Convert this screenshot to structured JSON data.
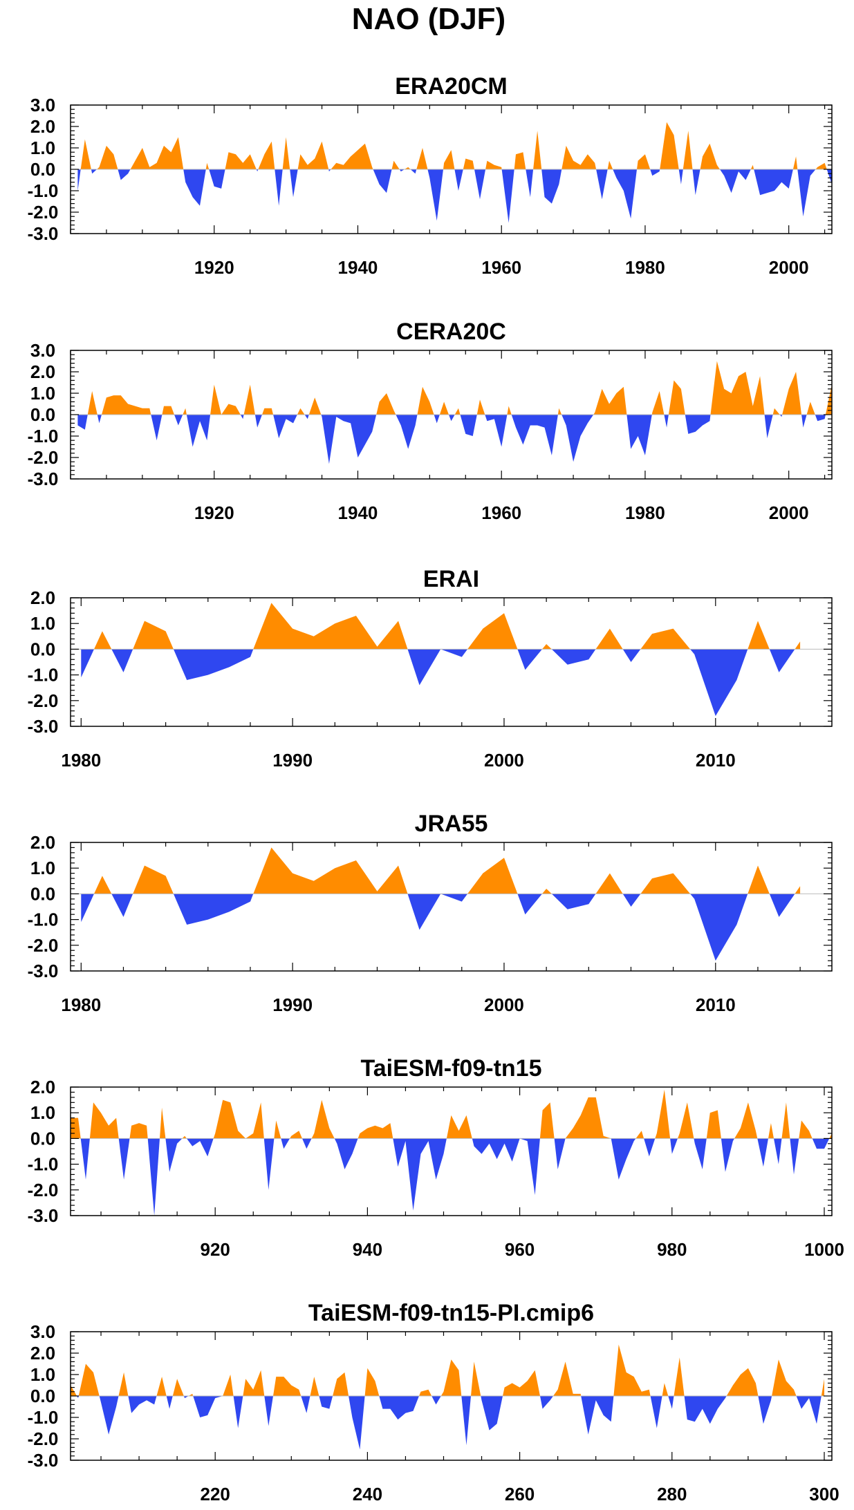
{
  "figure": {
    "title": "NAO (DJF)"
  },
  "colors": {
    "positive": "#FF8C00",
    "negative": "#2F47F0",
    "axis": "#000000"
  },
  "chart_data": [
    {
      "type": "area",
      "title": "ERA20CM",
      "xlabel": "",
      "ylabel": "",
      "xlim": [
        1900,
        2006
      ],
      "ylim": [
        -3,
        3
      ],
      "yticks": [
        3,
        2,
        1,
        0,
        -1,
        -2,
        -3
      ],
      "ytick_labels": [
        "3.0",
        "2.0",
        "1.0",
        "0.0",
        "-1.0",
        "-2.0",
        "-3.0"
      ],
      "xticks": [
        1920,
        1940,
        1960,
        1980,
        2000
      ],
      "xtick_labels": [
        "1920",
        "1940",
        "1960",
        "1980",
        "2000"
      ],
      "x_start": 1901,
      "values": [
        -1.0,
        1.4,
        -0.2,
        0.1,
        1.1,
        0.7,
        -0.5,
        -0.2,
        0.4,
        1.0,
        0.1,
        0.3,
        1.1,
        0.8,
        1.5,
        -0.6,
        -1.3,
        -1.7,
        0.3,
        -0.8,
        -0.9,
        0.8,
        0.7,
        0.3,
        0.7,
        -0.1,
        0.7,
        1.3,
        -1.7,
        1.5,
        -1.3,
        0.7,
        0.2,
        0.5,
        1.3,
        -0.1,
        0.3,
        0.2,
        0.6,
        0.9,
        1.2,
        0.1,
        -0.7,
        -1.1,
        0.4,
        -0.1,
        0.1,
        -0.2,
        1.0,
        -0.4,
        -2.4,
        0.3,
        0.9,
        -1.0,
        0.5,
        0.4,
        -1.4,
        0.4,
        0.2,
        0.1,
        -2.5,
        0.7,
        0.8,
        -1.3,
        1.8,
        -1.3,
        -1.6,
        -0.7,
        1.1,
        0.4,
        0.2,
        0.7,
        0.3,
        -1.4,
        0.4,
        -0.4,
        -1.0,
        -2.3,
        0.4,
        0.7,
        -0.3,
        -0.1,
        2.2,
        1.6,
        -0.7,
        1.8,
        -1.2,
        0.6,
        1.2,
        0.2,
        -0.3,
        -1.1,
        -0.1,
        -0.5,
        0.2,
        -1.2,
        -1.1,
        -1.0,
        -0.6,
        -0.9,
        0.6,
        -2.2,
        -0.3,
        0.1,
        0.3,
        -0.7
      ]
    },
    {
      "type": "area",
      "title": "CERA20C",
      "xlabel": "",
      "ylabel": "",
      "xlim": [
        1900,
        2006
      ],
      "ylim": [
        -3,
        3
      ],
      "yticks": [
        3,
        2,
        1,
        0,
        -1,
        -2,
        -3
      ],
      "ytick_labels": [
        "3.0",
        "2.0",
        "1.0",
        "0.0",
        "-1.0",
        "-2.0",
        "-3.0"
      ],
      "xticks": [
        1920,
        1940,
        1960,
        1980,
        2000
      ],
      "xtick_labels": [
        "1920",
        "1940",
        "1960",
        "1980",
        "2000"
      ],
      "x_start": 1901,
      "values": [
        -0.5,
        -0.7,
        1.1,
        -0.4,
        0.8,
        0.9,
        0.9,
        0.5,
        0.4,
        0.3,
        0.3,
        -1.2,
        0.4,
        0.4,
        -0.5,
        0.3,
        -1.5,
        -0.3,
        -1.2,
        1.4,
        0.0,
        0.5,
        0.4,
        -0.2,
        1.4,
        -0.6,
        0.3,
        0.3,
        -1.1,
        -0.2,
        -0.4,
        0.3,
        -0.2,
        0.8,
        -0.1,
        -2.3,
        -0.1,
        -0.3,
        -0.4,
        -2.0,
        -1.4,
        -0.8,
        0.6,
        1.0,
        0.2,
        -0.5,
        -1.6,
        -0.5,
        1.3,
        0.6,
        -0.4,
        0.6,
        -0.3,
        0.3,
        -0.9,
        -1.0,
        0.7,
        -0.3,
        -0.2,
        -1.5,
        0.4,
        -0.6,
        -1.4,
        -0.5,
        -0.5,
        -0.6,
        -1.9,
        0.3,
        -0.5,
        -2.2,
        -1.0,
        -0.4,
        0.1,
        1.2,
        0.5,
        1.0,
        1.3,
        -1.6,
        -1.0,
        -1.9,
        0.1,
        1.1,
        -0.6,
        1.6,
        1.2,
        -0.9,
        -0.8,
        -0.5,
        -0.3,
        2.5,
        1.2,
        1.0,
        1.8,
        2.0,
        0.4,
        1.8,
        -1.1,
        0.3,
        -0.1,
        1.2,
        2.0,
        -0.6,
        0.6,
        -0.3,
        -0.2,
        1.4
      ]
    },
    {
      "type": "area",
      "title": "ERAI",
      "xlabel": "",
      "ylabel": "",
      "xlim": [
        1979.5,
        2015.5
      ],
      "ylim": [
        -3,
        2
      ],
      "yticks": [
        2,
        1,
        0,
        -1,
        -2,
        -3
      ],
      "ytick_labels": [
        "2.0",
        "1.0",
        "0.0",
        "-1.0",
        "-2.0",
        "-3.0"
      ],
      "xticks": [
        1980,
        1990,
        2000,
        2010
      ],
      "xtick_labels": [
        "1980",
        "1990",
        "2000",
        "2010"
      ],
      "x_start": 1980,
      "values": [
        -1.1,
        0.7,
        -0.9,
        1.1,
        0.7,
        -1.2,
        -1.0,
        -0.7,
        -0.3,
        1.8,
        0.8,
        0.5,
        1.0,
        1.3,
        0.1,
        1.1,
        -1.4,
        0.0,
        -0.3,
        0.8,
        1.4,
        -0.8,
        0.2,
        -0.6,
        -0.4,
        0.8,
        -0.5,
        0.6,
        0.8,
        -0.2,
        -2.6,
        -1.2,
        1.1,
        -0.9,
        0.3
      ]
    },
    {
      "type": "area",
      "title": "JRA55",
      "xlabel": "",
      "ylabel": "",
      "xlim": [
        1979.5,
        2015.5
      ],
      "ylim": [
        -3,
        2
      ],
      "yticks": [
        2,
        1,
        0,
        -1,
        -2,
        -3
      ],
      "ytick_labels": [
        "2.0",
        "1.0",
        "0.0",
        "-1.0",
        "-2.0",
        "-3.0"
      ],
      "xticks": [
        1980,
        1990,
        2000,
        2010
      ],
      "xtick_labels": [
        "1980",
        "1990",
        "2000",
        "2010"
      ],
      "x_start": 1980,
      "values": [
        -1.1,
        0.7,
        -0.9,
        1.1,
        0.7,
        -1.2,
        -1.0,
        -0.7,
        -0.3,
        1.8,
        0.8,
        0.5,
        1.0,
        1.3,
        0.1,
        1.1,
        -1.4,
        0.0,
        -0.3,
        0.8,
        1.4,
        -0.8,
        0.2,
        -0.6,
        -0.4,
        0.8,
        -0.5,
        0.6,
        0.8,
        -0.2,
        -2.6,
        -1.2,
        1.1,
        -0.9,
        0.3
      ]
    },
    {
      "type": "area",
      "title": "TaiESM-f09-tn15",
      "xlabel": "",
      "ylabel": "",
      "xlim": [
        901,
        1001
      ],
      "ylim": [
        -3,
        2
      ],
      "yticks": [
        2,
        1,
        0,
        -1,
        -2,
        -3
      ],
      "ytick_labels": [
        "2.0",
        "1.0",
        "0.0",
        "-1.0",
        "-2.0",
        "-3.0"
      ],
      "xticks": [
        920,
        940,
        960,
        980,
        1000
      ],
      "xtick_labels": [
        "920",
        "940",
        "960",
        "980",
        "1000"
      ],
      "x_start": 901,
      "values": [
        0.8,
        0.8,
        -1.6,
        1.4,
        1.0,
        0.5,
        0.8,
        -1.6,
        0.5,
        0.6,
        0.5,
        -3.0,
        1.2,
        -1.3,
        -0.2,
        0.1,
        -0.3,
        -0.1,
        -0.7,
        0.2,
        1.5,
        1.4,
        0.3,
        0.0,
        0.2,
        1.4,
        -2.0,
        0.7,
        -0.4,
        0.1,
        0.3,
        -0.4,
        0.2,
        1.5,
        0.4,
        -0.2,
        -1.2,
        -0.6,
        0.2,
        0.4,
        0.5,
        0.4,
        0.6,
        -1.1,
        -0.1,
        -2.8,
        -0.6,
        -0.1,
        -1.6,
        -0.6,
        0.9,
        0.3,
        0.9,
        -0.3,
        -0.6,
        -0.2,
        -0.8,
        -0.2,
        -0.9,
        0.0,
        -0.1,
        -2.2,
        1.1,
        1.4,
        -1.2,
        0.0,
        0.4,
        0.9,
        1.6,
        1.6,
        0.1,
        0.0,
        -1.6,
        -0.8,
        -0.1,
        0.3,
        -0.7,
        0.2,
        1.9,
        -0.6,
        0.2,
        1.4,
        -0.2,
        -1.2,
        1.0,
        1.1,
        -1.3,
        -0.1,
        0.4,
        1.4,
        0.3,
        -1.1,
        0.6,
        -1.0,
        1.4,
        -1.4,
        0.7,
        0.3,
        -0.4,
        -0.4,
        0.2
      ]
    },
    {
      "type": "area",
      "title": "TaiESM-f09-tn15-PI.cmip6",
      "xlabel": "",
      "ylabel": "",
      "xlim": [
        201,
        301
      ],
      "ylim": [
        -3,
        3
      ],
      "yticks": [
        3,
        2,
        1,
        0,
        -1,
        -2,
        -3
      ],
      "ytick_labels": [
        "3.0",
        "2.0",
        "1.0",
        "0.0",
        "-1.0",
        "-2.0",
        "-3.0"
      ],
      "xticks": [
        220,
        240,
        260,
        280,
        300
      ],
      "xtick_labels": [
        "220",
        "240",
        "260",
        "280",
        "300"
      ],
      "x_start": 201,
      "values": [
        0.5,
        -0.1,
        1.5,
        1.1,
        -0.3,
        -1.8,
        -0.5,
        1.1,
        -0.8,
        -0.4,
        -0.2,
        -0.4,
        0.9,
        -0.6,
        0.8,
        -0.1,
        0.1,
        -1.0,
        -0.9,
        -0.1,
        0.0,
        1.0,
        -1.5,
        0.8,
        0.3,
        1.2,
        -1.4,
        0.9,
        0.9,
        0.5,
        0.3,
        -0.8,
        0.9,
        -0.5,
        -0.6,
        0.8,
        1.1,
        -1.0,
        -2.5,
        1.3,
        0.7,
        -0.6,
        -0.6,
        -1.1,
        -0.8,
        -0.7,
        0.2,
        0.3,
        -0.4,
        0.2,
        1.7,
        1.2,
        -2.3,
        1.6,
        -0.2,
        -1.6,
        -1.3,
        0.4,
        0.6,
        0.4,
        0.7,
        1.2,
        -0.6,
        -0.2,
        0.3,
        1.6,
        0.1,
        0.1,
        -1.8,
        -0.2,
        -0.9,
        -1.2,
        2.4,
        1.1,
        0.9,
        0.2,
        0.3,
        -1.5,
        0.6,
        -0.6,
        1.8,
        -1.1,
        -1.2,
        -0.6,
        -1.3,
        -0.6,
        -0.1,
        0.5,
        1.0,
        1.3,
        0.6,
        -1.3,
        -0.2,
        1.7,
        0.7,
        0.3,
        -0.6,
        -0.1,
        -1.3,
        0.8
      ]
    }
  ]
}
